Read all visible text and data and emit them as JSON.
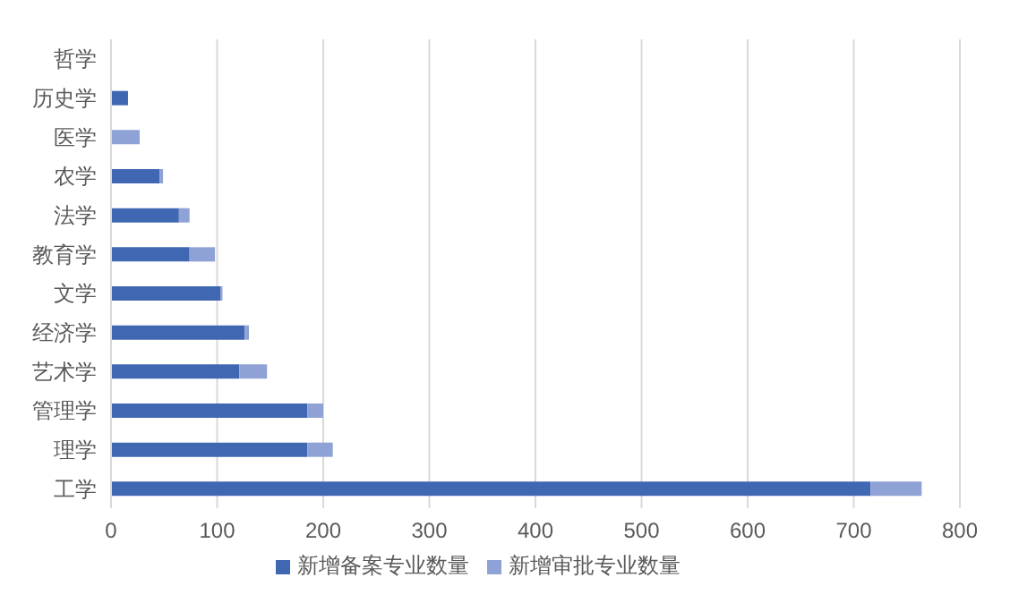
{
  "chart_data": {
    "type": "bar",
    "orientation": "horizontal",
    "stacked": true,
    "categories": [
      "哲学",
      "历史学",
      "医学",
      "农学",
      "法学",
      "教育学",
      "文学",
      "经济学",
      "艺术学",
      "管理学",
      "理学",
      "工学"
    ],
    "series": [
      {
        "name": "新增备案专业数量",
        "color": "#4068b2",
        "values": [
          0,
          16,
          0,
          46,
          64,
          74,
          103,
          126,
          121,
          185,
          185,
          716
        ]
      },
      {
        "name": "新增审批专业数量",
        "color": "#8fa2d6",
        "values": [
          0,
          0,
          27,
          3,
          10,
          24,
          2,
          4,
          26,
          15,
          24,
          48
        ]
      }
    ],
    "xlim": [
      0,
      800
    ],
    "xticks": [
      0,
      100,
      200,
      300,
      400,
      500,
      600,
      700,
      800
    ],
    "grid": "x",
    "legend": "bottom"
  }
}
